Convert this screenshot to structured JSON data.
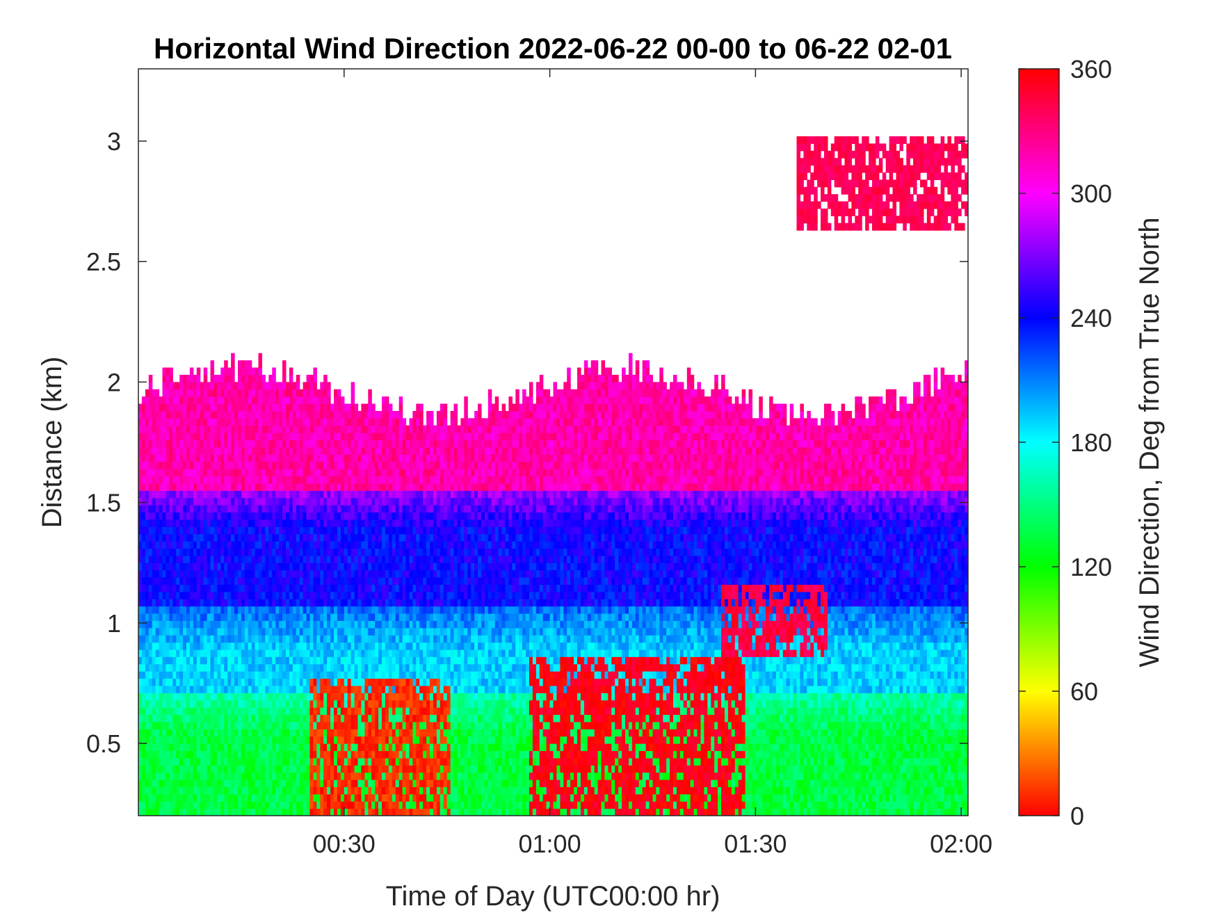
{
  "chart_data": {
    "type": "heatmap",
    "title": "Horizontal Wind Direction 2022-06-22 00-00 to 06-22 02-01",
    "xlabel": "Time of Day (UTC00:00 hr)",
    "ylabel": "Distance (km)",
    "colorbar_label": "Wind Direction, Deg from True North",
    "xlim": [
      "00:00",
      "02:01"
    ],
    "x_ticks": [
      "00:30",
      "01:00",
      "01:30",
      "02:00"
    ],
    "ylim": [
      0.2,
      3.3
    ],
    "y_ticks": [
      "0.5",
      "1",
      "1.5",
      "2",
      "2.5",
      "3"
    ],
    "clim": [
      0,
      360
    ],
    "colorbar_ticks": [
      "0",
      "60",
      "120",
      "180",
      "240",
      "300",
      "360"
    ],
    "colormap": [
      "#ff0000",
      "#ffff00",
      "#00ff00",
      "#00ffff",
      "#0000ff",
      "#ff00ff",
      "#ff0000"
    ],
    "grid": false,
    "field_description": {
      "layers_km": [
        {
          "from": 0.2,
          "to": 0.7,
          "direction_deg": 135
        },
        {
          "from": 0.7,
          "to": 1.05,
          "direction_deg": 190
        },
        {
          "from": 1.05,
          "to": 1.55,
          "direction_deg": 240
        },
        {
          "from": 1.55,
          "to": 1.95,
          "direction_deg": 320
        }
      ],
      "upper_patch": {
        "time_start": "01:36",
        "time_end": "02:01",
        "height_from": 2.6,
        "height_to": 3.0,
        "direction_deg": 340
      },
      "low_level_patches": [
        {
          "time_start": "00:25",
          "time_end": "00:45",
          "height_from": 0.2,
          "height_to": 0.75,
          "direction_deg": 10
        },
        {
          "time_start": "00:57",
          "time_end": "01:28",
          "height_from": 0.2,
          "height_to": 0.85,
          "direction_deg": 355
        },
        {
          "time_start": "01:25",
          "time_end": "01:40",
          "height_from": 0.85,
          "height_to": 1.15,
          "direction_deg": 345
        }
      ]
    }
  }
}
